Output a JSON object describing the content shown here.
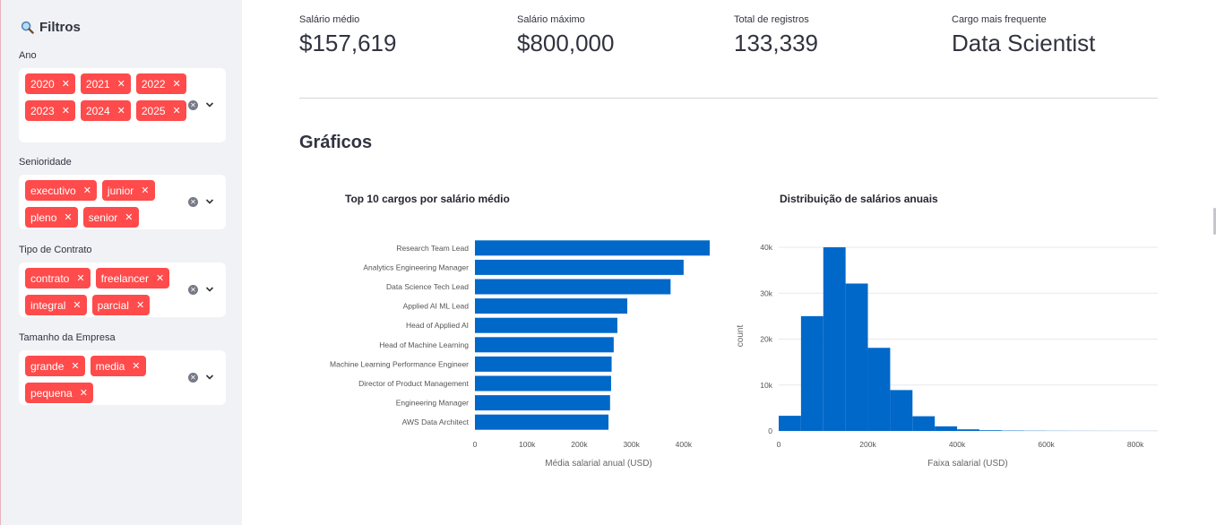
{
  "sidebar": {
    "title": "Filtros",
    "filters": [
      {
        "label": "Ano",
        "chips": [
          "2020",
          "2021",
          "2022",
          "2023",
          "2024",
          "2025"
        ]
      },
      {
        "label": "Senioridade",
        "chips": [
          "executivo",
          "junior",
          "pleno",
          "senior"
        ]
      },
      {
        "label": "Tipo de Contrato",
        "chips": [
          "contrato",
          "freelancer",
          "integral",
          "parcial"
        ]
      },
      {
        "label": "Tamanho da Empresa",
        "chips": [
          "grande",
          "media",
          "pequena"
        ]
      }
    ]
  },
  "metrics": [
    {
      "label": "Salário médio",
      "value": "$157,619"
    },
    {
      "label": "Salário máximo",
      "value": "$800,000"
    },
    {
      "label": "Total de registros",
      "value": "133,339"
    },
    {
      "label": "Cargo mais frequente",
      "value": "Data Scientist"
    }
  ],
  "section_title": "Gráficos",
  "colors": {
    "accent": "#ff4b4b",
    "bar": "#0068c9",
    "sidebar_bg": "#f0f2f6"
  },
  "chart_data": [
    {
      "type": "bar",
      "orientation": "horizontal",
      "title": "Top 10 cargos por salário médio",
      "xlabel": "Média salarial anual (USD)",
      "ylabel": "",
      "categories": [
        "Research Team Lead",
        "Analytics Engineering Manager",
        "Data Science Tech Lead",
        "Applied AI ML Lead",
        "Head of Applied AI",
        "Head of Machine Learning",
        "Machine Learning Performance Engineer",
        "Director of Product Management",
        "Engineering Manager",
        "AWS Data Architect"
      ],
      "values": [
        450000,
        400000,
        375000,
        292000,
        273000,
        266000,
        262000,
        261000,
        259000,
        256000
      ],
      "xlim": [
        0,
        450000
      ],
      "xticks": [
        0,
        100000,
        200000,
        300000,
        400000
      ],
      "xtick_labels": [
        "0",
        "100k",
        "200k",
        "300k",
        "400k"
      ],
      "grid": false
    },
    {
      "type": "bar",
      "subtype": "histogram",
      "title": "Distribuição de salários anuais",
      "xlabel": "Faixa salarial (USD)",
      "ylabel": "count",
      "bin_edges": [
        0,
        50000,
        100000,
        150000,
        200000,
        250000,
        300000,
        350000,
        400000,
        450000,
        500000,
        550000,
        600000,
        650000,
        700000,
        750000,
        800000,
        850000
      ],
      "values": [
        3300,
        25000,
        40000,
        32100,
        18100,
        8900,
        3200,
        1000,
        350,
        150,
        80,
        50,
        30,
        20,
        15,
        10,
        10
      ],
      "xlim": [
        0,
        850000
      ],
      "ylim": [
        0,
        40000
      ],
      "xticks": [
        0,
        200000,
        400000,
        600000,
        800000
      ],
      "xtick_labels": [
        "0",
        "200k",
        "400k",
        "600k",
        "800k"
      ],
      "yticks": [
        0,
        10000,
        20000,
        30000,
        40000
      ],
      "ytick_labels": [
        "0",
        "10k",
        "20k",
        "30k",
        "40k"
      ],
      "grid": true
    }
  ]
}
